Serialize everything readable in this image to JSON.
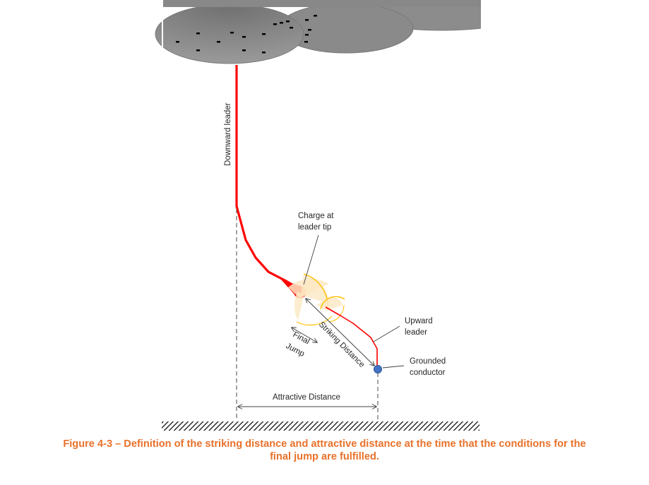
{
  "labels": {
    "downward_leader": "Downward leader",
    "charge_line1": "Charge at",
    "charge_line2": "leader tip",
    "upward_line1": "Upward",
    "upward_line2": "leader",
    "grounded_line1": "Grounded",
    "grounded_line2": "conductor",
    "final_line1": "Final",
    "final_line2": "Jump",
    "striking_distance": "Striking Distance",
    "attractive_distance": "Attractive Distance"
  },
  "caption": {
    "line1": "Figure 4-3 – Definition of the striking distance and attractive distance at the time that the conditions for the",
    "line2": "final jump are fulfilled."
  },
  "colors": {
    "cloud": "#7f7f7f",
    "leader": "#ff0000",
    "conductor": "#4472c4",
    "zone_fill": "#fde9c4",
    "zone_edge": "#ffc000",
    "caption": "#e8712a"
  }
}
